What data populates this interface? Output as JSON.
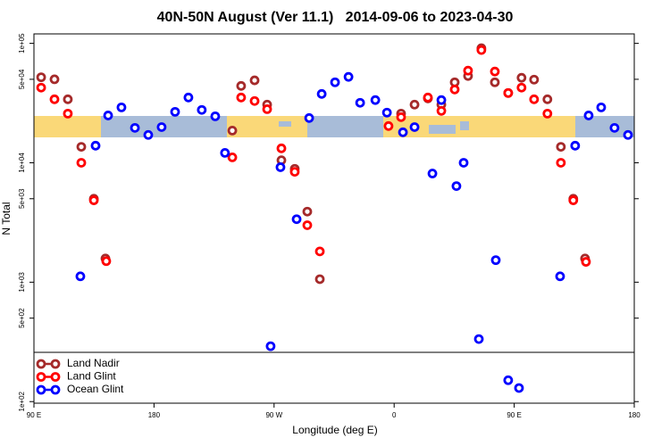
{
  "chart_data": {
    "type": "scatter",
    "title": "40N-50N August (Ver 11.1)   2014-09-06 to 2023-04-30",
    "xlabel": "Longitude (deg E)",
    "ylabel": "N Total",
    "xlim": [
      90,
      540
    ],
    "xticks": [
      {
        "value": 90,
        "label": "90 E"
      },
      180,
      {
        "value": 270,
        "label": "90 W"
      },
      {
        "value": 360,
        "label": "0"
      },
      {
        "value": 450,
        "label": "90 E"
      },
      {
        "value": 540,
        "label": "180"
      }
    ],
    "ylim": [
      97,
      120000
    ],
    "log_y": true,
    "yticks": [
      {
        "value": 100000,
        "label": "1e+05"
      },
      {
        "value": 50000,
        "label": "5e+04"
      },
      {
        "value": 10000,
        "label": "1e+04"
      },
      {
        "value": 5000,
        "label": "5e+03"
      },
      {
        "value": 1000,
        "label": "1e+03"
      },
      {
        "value": 500,
        "label": "5e+02"
      },
      {
        "value": 100,
        "label": "1e+02"
      }
    ],
    "legend": "lower left",
    "series": [
      {
        "name": "Land Nadir",
        "color": "#a52a2a",
        "x": [
          95.4,
          105.4,
          115.4,
          125.5,
          134.9,
          143.6,
          238.7,
          245.3,
          255.4,
          264.8,
          275.5,
          285.5,
          294.9,
          304.3,
          365.2,
          375.3,
          385.3,
          395.4,
          405.4,
          415.4,
          425.4,
          435.5,
          445.5,
          455.5,
          464.9,
          474.9,
          485.0,
          494.3,
          503.1
        ],
        "values": [
          52000,
          50000,
          34000,
          13600,
          5000,
          1580,
          18600,
          44000,
          49000,
          30700,
          10500,
          8900,
          3900,
          1060,
          25800,
          30700,
          34600,
          30700,
          47200,
          53300,
          91000,
          47200,
          38400,
          51500,
          49700,
          34000,
          13600,
          5000,
          1580
        ]
      },
      {
        "name": "Land Glint",
        "color": "#ff0000",
        "x": [
          95.4,
          105.4,
          115.4,
          125.5,
          134.9,
          144.2,
          238.7,
          245.3,
          255.4,
          264.8,
          275.5,
          285.5,
          294.9,
          304.3,
          355.8,
          365.2,
          385.3,
          395.4,
          405.4,
          415.4,
          425.4,
          435.5,
          445.5,
          455.5,
          464.9,
          474.9,
          485.0,
          494.3,
          503.8
        ],
        "values": [
          42600,
          34000,
          25800,
          10000,
          4850,
          1500,
          11100,
          35200,
          32900,
          28100,
          13200,
          8400,
          3000,
          1810,
          20300,
          24100,
          35200,
          27200,
          41100,
          59100,
          87900,
          58100,
          38400,
          42600,
          34000,
          25800,
          10000,
          4850,
          1480
        ]
      },
      {
        "name": "Ocean Glint",
        "color": "#0000ff",
        "x": [
          124.8,
          136.2,
          145.6,
          155.6,
          165.7,
          175.7,
          185.7,
          195.8,
          205.8,
          215.8,
          225.9,
          233.2,
          267.4,
          274.8,
          286.9,
          296.3,
          305.7,
          315.7,
          325.8,
          334.5,
          345.9,
          354.6,
          366.6,
          375.3,
          388.7,
          395.4,
          406.7,
          412.1,
          423.5,
          436.2,
          445.5,
          453.6,
          484.4,
          495.7,
          505.8,
          515.2,
          525.2,
          535.3
        ],
        "values": [
          1120,
          13900,
          24900,
          29100,
          19600,
          17100,
          19900,
          26700,
          35200,
          27700,
          24500,
          12100,
          291,
          9180,
          3370,
          23700,
          37700,
          47200,
          52400,
          31800,
          33500,
          26300,
          18000,
          19900,
          8130,
          33500,
          6380,
          10000,
          334,
          1530,
          151,
          130,
          1120,
          13900,
          24900,
          29100,
          19600,
          17100
        ]
      }
    ]
  }
}
